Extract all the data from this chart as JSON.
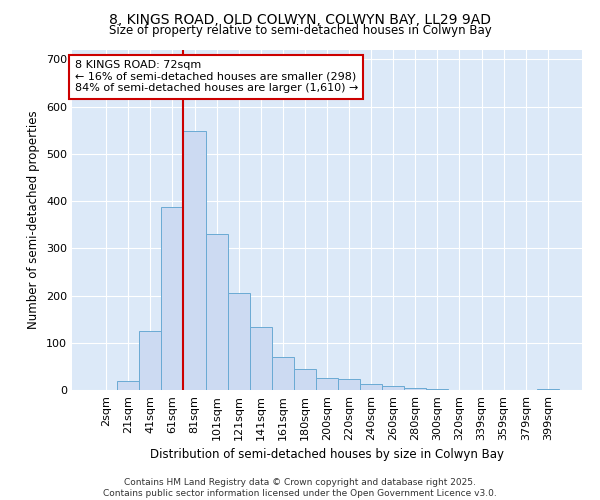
{
  "title1": "8, KINGS ROAD, OLD COLWYN, COLWYN BAY, LL29 9AD",
  "title2": "Size of property relative to semi-detached houses in Colwyn Bay",
  "xlabel": "Distribution of semi-detached houses by size in Colwyn Bay",
  "ylabel": "Number of semi-detached properties",
  "bar_labels": [
    "2sqm",
    "21sqm",
    "41sqm",
    "61sqm",
    "81sqm",
    "101sqm",
    "121sqm",
    "141sqm",
    "161sqm",
    "180sqm",
    "200sqm",
    "220sqm",
    "240sqm",
    "260sqm",
    "280sqm",
    "300sqm",
    "320sqm",
    "339sqm",
    "359sqm",
    "379sqm",
    "399sqm"
  ],
  "bar_values": [
    0,
    20,
    125,
    388,
    548,
    330,
    205,
    133,
    70,
    44,
    26,
    23,
    13,
    8,
    5,
    2,
    1,
    0,
    1,
    0,
    3
  ],
  "bar_color": "#ccdaf2",
  "bar_edge_color": "#6aaad4",
  "vline_x": 3.5,
  "vline_color": "#cc0000",
  "annotation_title": "8 KINGS ROAD: 72sqm",
  "annotation_line1": "← 16% of semi-detached houses are smaller (298)",
  "annotation_line2": "84% of semi-detached houses are larger (1,610) →",
  "annotation_box_color": "#cc0000",
  "ylim": [
    0,
    720
  ],
  "yticks": [
    0,
    100,
    200,
    300,
    400,
    500,
    600,
    700
  ],
  "fig_background": "#ffffff",
  "plot_background": "#dce9f8",
  "grid_color": "#ffffff",
  "footer": "Contains HM Land Registry data © Crown copyright and database right 2025.\nContains public sector information licensed under the Open Government Licence v3.0."
}
